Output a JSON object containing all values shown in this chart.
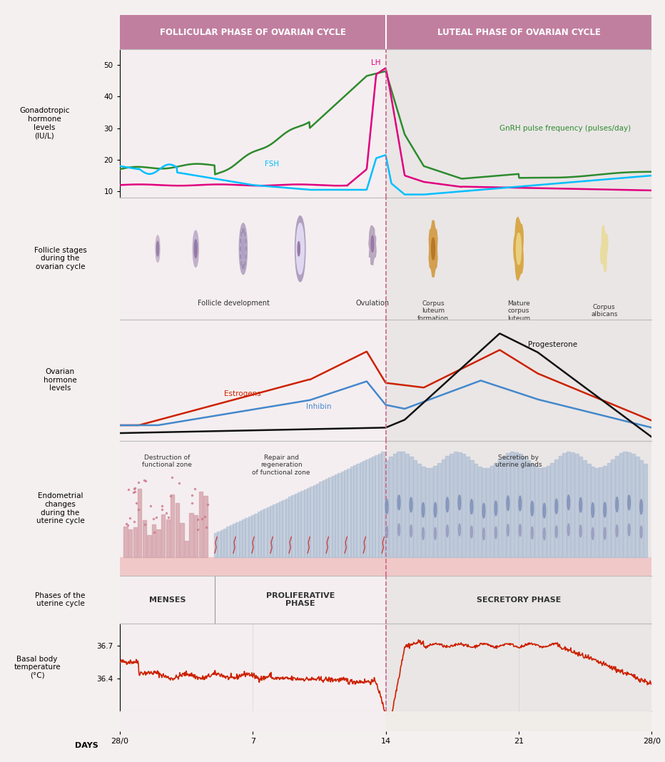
{
  "header_bg": "#c17fa0",
  "header_text_color": "#ffffff",
  "follicular_label": "FOLLICULAR PHASE OF OVARIAN CYCLE",
  "luteal_label": "LUTEAL PHASE OF OVARIAN CYCLE",
  "days_labels": [
    "28/0",
    "7",
    "14",
    "21",
    "28/0"
  ],
  "ovulation_day": 14,
  "panel1_title": "Gonadotropic\nhormone\nlevels\n(IU/L)",
  "panel1_yticks": [
    10,
    20,
    30,
    40,
    50
  ],
  "panel1_ylim": [
    8,
    55
  ],
  "gnrh_color": "#2e8b2e",
  "lh_color": "#e0007f",
  "fsh_color": "#00bfff",
  "gnrh_label": "GnRH pulse frequency (pulses/day)",
  "lh_label": "LH",
  "fsh_label": "FSH",
  "panel2_title": "Follicle stages\nduring the\novarian cycle",
  "panel3_title": "Ovarian\nhormone\nlevels",
  "estrogen_color": "#cc2200",
  "inhibin_color": "#4488cc",
  "progesterone_color": "#111111",
  "estrogen_label": "Estrogens",
  "inhibin_label": "Inhibin",
  "progesterone_label": "Progesterone",
  "panel4_title": "Endometrial\nchanges\nduring the\nuterine cycle",
  "panel5_title": "Phases of the\nuterine cycle",
  "menses_label": "MENSES",
  "proliferative_label": "PROLIFERATIVE\nPHASE",
  "secretory_label": "SECRETORY PHASE",
  "panel6_title": "Basal body\ntemperature\n(°C)",
  "panel6_yticks": [
    36.4,
    36.7
  ],
  "panel6_ylim": [
    36.1,
    36.9
  ],
  "temp_color": "#cc2200",
  "follicle_dev_label": "Follicle development",
  "ovulation_label": "Ovulation",
  "corpus_luteum_label": "Corpus\nluteum\nformation",
  "mature_corpus_label": "Mature\ncorpus\nluteum",
  "corpus_albicans_label": "Corpus\nalbicans",
  "destruction_label": "Destruction of\nfunctional zone",
  "repair_label": "Repair and\nregeneration\nof functional zone",
  "secretion_label": "Secretion by\nuterine glands",
  "dashed_line_color": "#cc6688",
  "follicular_bg": "#f5eef0",
  "luteal_bg": "#eae6e6"
}
